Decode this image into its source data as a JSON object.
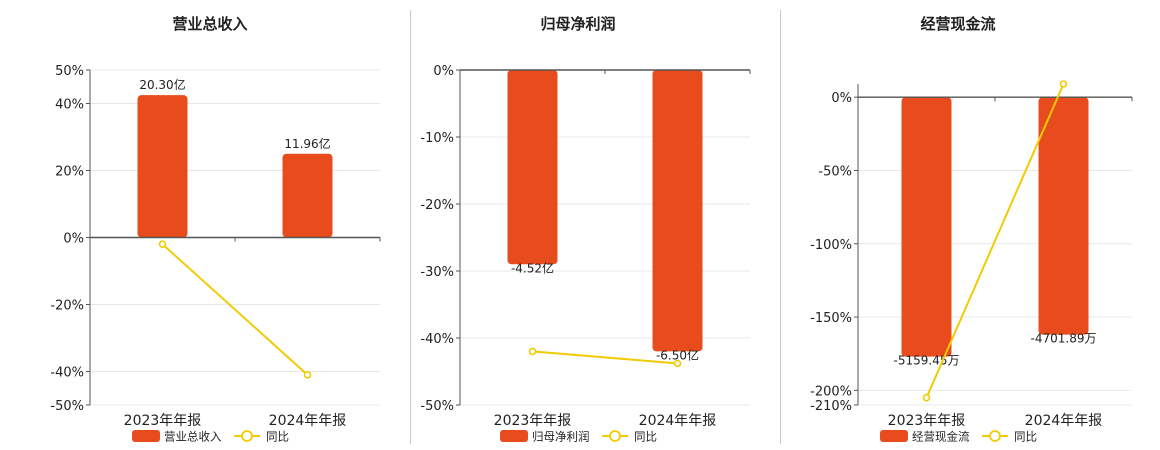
{
  "colors": {
    "bar": "#E84B1C",
    "line": "#F2CB05",
    "grid": "#E8E8E8",
    "axis": "#555555",
    "text": "#222222"
  },
  "chart_data": [
    {
      "type": "bar",
      "title": "营业总收入",
      "categories": [
        "2023年年报",
        "2024年年报"
      ],
      "series": [
        {
          "name": "营业总收入",
          "type": "bar",
          "values": [
            42.5,
            25.0
          ],
          "labels": [
            "20.30亿",
            "11.96亿"
          ]
        },
        {
          "name": "同比",
          "type": "line",
          "values": [
            -2.0,
            -41.0
          ]
        }
      ],
      "ylim": [
        -50,
        50
      ],
      "yticks": [
        -50,
        -40,
        -20,
        0,
        20,
        40,
        50
      ],
      "ytick_labels": [
        "-50%",
        "-40%",
        "-20%",
        "0%",
        "20%",
        "40%",
        "50%"
      ],
      "grid": true,
      "legend": "bottom"
    },
    {
      "type": "bar",
      "title": "归母净利润",
      "categories": [
        "2023年年报",
        "2024年年报"
      ],
      "series": [
        {
          "name": "归母净利润",
          "type": "bar",
          "values": [
            -29.0,
            -42.0
          ],
          "labels": [
            "-4.52亿",
            "-6.50亿"
          ]
        },
        {
          "name": "同比",
          "type": "line",
          "values": [
            -42.0,
            -43.8
          ]
        }
      ],
      "ylim": [
        -50,
        0
      ],
      "yticks": [
        -50,
        -40,
        -30,
        -20,
        -10,
        0
      ],
      "ytick_labels": [
        "-50%",
        "-40%",
        "-30%",
        "-20%",
        "-10%",
        "0%"
      ],
      "grid": true,
      "legend": "bottom"
    },
    {
      "type": "bar",
      "title": "经营现金流",
      "categories": [
        "2023年年报",
        "2024年年报"
      ],
      "series": [
        {
          "name": "经营现金流",
          "type": "bar",
          "values": [
            -177.0,
            -162.0
          ],
          "labels": [
            "-5159.45万",
            "-4701.89万"
          ]
        },
        {
          "name": "同比",
          "type": "line",
          "values": [
            -205.0,
            9.0
          ]
        }
      ],
      "ylim": [
        -210,
        9
      ],
      "yticks": [
        -210,
        -200,
        -150,
        -100,
        -50,
        0
      ],
      "ytick_labels": [
        "-210%",
        "-200%",
        "-150%",
        "-100%",
        "-50%",
        "0%"
      ],
      "grid": true,
      "legend": "bottom"
    }
  ]
}
